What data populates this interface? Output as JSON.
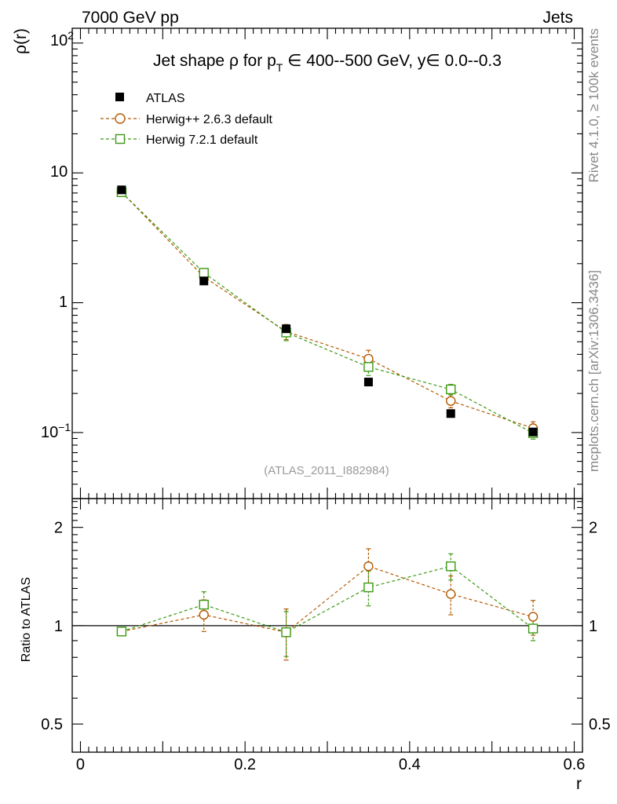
{
  "header": {
    "left": "7000 GeV pp",
    "right": "Jets"
  },
  "side": {
    "rivet": "Rivet 4.1.0, ≥ 100k events",
    "mcplots": "mcplots.cern.ch [arXiv:1306.3436]"
  },
  "chart_data": [
    {
      "type": "scatter",
      "panel": "main",
      "title": "Jet shape ρ for p_T ∈ 400--500 GeV, y∈ 0.0--0.3",
      "title_parts": {
        "prefix": "Jet shape ρ for p",
        "subscript": "T",
        "suffix": " ∈ 400--500 GeV, y∈ 0.0--0.3"
      },
      "ylabel": "ρ(r)",
      "xlabel": "r",
      "yscale": "log",
      "xlim": [
        -0.01,
        0.61
      ],
      "ylim": [
        0.031,
        130
      ],
      "x_ticks": [
        0,
        0.2,
        0.4,
        0.6
      ],
      "x_tick_labels": [
        "0",
        "0.2",
        "0.4",
        "0.6"
      ],
      "watermark": "(ATLAS_2011_I882984)",
      "legend_position": "top-left",
      "series": [
        {
          "name": "ATLAS",
          "style": "data-marker",
          "color": "#000000",
          "x": [
            0.05,
            0.15,
            0.25,
            0.35,
            0.45,
            0.55
          ],
          "y": [
            7.4,
            1.47,
            0.63,
            0.245,
            0.14,
            0.101
          ]
        },
        {
          "name": "Herwig++ 2.6.3 default",
          "style": "open-circle",
          "color": "#b35900",
          "x": [
            0.05,
            0.15,
            0.25,
            0.35,
            0.45,
            0.55
          ],
          "y": [
            7.1,
            1.58,
            0.6,
            0.37,
            0.175,
            0.108
          ],
          "err": [
            0.15,
            0.12,
            0.08,
            0.06,
            0.02,
            0.013
          ]
        },
        {
          "name": "Herwig 7.2.1 default",
          "style": "open-square",
          "color": "#3c9a12",
          "x": [
            0.05,
            0.15,
            0.25,
            0.35,
            0.45,
            0.55
          ],
          "y": [
            7.1,
            1.7,
            0.59,
            0.32,
            0.215,
            0.099
          ],
          "err": [
            0.15,
            0.12,
            0.08,
            0.045,
            0.02,
            0.01
          ]
        }
      ]
    },
    {
      "type": "scatter",
      "panel": "ratio",
      "ylabel": "Ratio to ATLAS",
      "xlabel": "r",
      "yscale": "log",
      "xlim": [
        -0.01,
        0.61
      ],
      "ylim": [
        0.41,
        2.45
      ],
      "y_ticks": [
        0.5,
        1,
        2
      ],
      "y_tick_labels": [
        "0.5",
        "1",
        "2"
      ],
      "reference_line": 1,
      "series": [
        {
          "name": "Herwig++ 2.6.3 default",
          "color": "#b35900",
          "x": [
            0.05,
            0.15,
            0.25,
            0.35,
            0.45,
            0.55
          ],
          "y": [
            0.96,
            1.08,
            0.955,
            1.52,
            1.25,
            1.065
          ],
          "err": [
            0.02,
            0.12,
            0.17,
            0.2,
            0.17,
            0.13
          ]
        },
        {
          "name": "Herwig 7.2.1 default",
          "color": "#3c9a12",
          "x": [
            0.05,
            0.15,
            0.25,
            0.35,
            0.45,
            0.55
          ],
          "y": [
            0.96,
            1.16,
            0.955,
            1.31,
            1.52,
            0.98
          ],
          "err": [
            0.02,
            0.11,
            0.15,
            0.16,
            0.14,
            0.08
          ]
        }
      ]
    }
  ]
}
